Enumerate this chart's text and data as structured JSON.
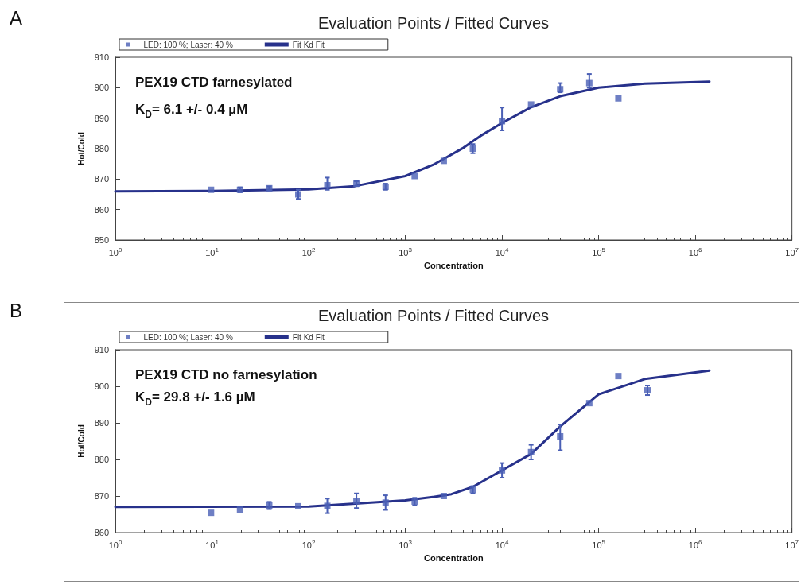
{
  "chart_data": [
    {
      "type": "scatter",
      "title": "Evaluation Points / Fitted Curves",
      "xlabel": "Concentration",
      "ylabel": "Hot/Cold",
      "annotations": [
        "A",
        "PEX19 CTD farnesylated",
        "K$_{D}$= 6.1 +/- 0.4 µM"
      ],
      "log": "x",
      "legend": "top left",
      "xlim": [
        1,
        10000000
      ],
      "xticks": [
        {
          "value": 1,
          "label": "10$^{0}$"
        },
        {
          "value": 10,
          "label": "10$^{1}$"
        },
        {
          "value": 100,
          "label": "10$^{2}$"
        },
        {
          "value": 1000,
          "label": "10$^{3}$"
        },
        {
          "value": 10000,
          "label": "10$^{4}$"
        },
        {
          "value": 100000,
          "label": "10$^{5}$"
        },
        {
          "value": 1000000,
          "label": "10$^{6}$"
        },
        {
          "value": 10000000,
          "label": "10$^{7}$"
        }
      ],
      "ylim": [
        850,
        910
      ],
      "yticks": [
        850,
        860,
        870,
        880,
        890,
        900,
        910
      ],
      "series": [
        {
          "name": "LED: 100 %; Laser: 40 %",
          "marker": "square",
          "color": "#4a5fb5",
          "x": [
            9.77,
            19.5,
            39.1,
            78.1,
            156,
            312,
            625,
            1250,
            2500,
            5000,
            10000,
            20000,
            40000,
            80000,
            160000
          ],
          "values": [
            866.5,
            866.5,
            867,
            865,
            868,
            868.5,
            867.5,
            871,
            876,
            880,
            889,
            894.5,
            899.5,
            901.5,
            896.5
          ],
          "errors": [
            null,
            0.8,
            0.6,
            [
              863.5,
              866.5
            ],
            [
              866.5,
              870.5
            ],
            0.8,
            1,
            null,
            null,
            [
              878.5,
              881.5
            ],
            [
              886,
              893.5
            ],
            null,
            [
              898.5,
              901.5
            ],
            [
              900,
              904.5
            ],
            null
          ]
        },
        {
          "name": "Fit Kd Fit",
          "type": "line",
          "marker": "none",
          "color": "#27318b",
          "x": [
            1,
            10,
            100,
            300,
            1000,
            2000,
            4000,
            6000,
            10000,
            20000,
            40000,
            100000,
            300000,
            1400000
          ],
          "values": [
            866,
            866.1,
            866.6,
            867.7,
            871,
            874.9,
            880.3,
            884.2,
            888.4,
            893.6,
            897.2,
            900,
            901.3,
            902
          ]
        }
      ]
    },
    {
      "type": "scatter",
      "title": "Evaluation Points / Fitted Curves",
      "xlabel": "Concentration",
      "ylabel": "Hot/Cold",
      "annotations": [
        "B",
        "PEX19 CTD no farnesylation",
        "K$_{D}$= 29.8 +/- 1.6 µM"
      ],
      "log": "x",
      "legend": "top left",
      "xlim": [
        1,
        10000000
      ],
      "xticks": [
        {
          "value": 1,
          "label": "10$^{0}$"
        },
        {
          "value": 10,
          "label": "10$^{1}$"
        },
        {
          "value": 100,
          "label": "10$^{2}$"
        },
        {
          "value": 1000,
          "label": "10$^{3}$"
        },
        {
          "value": 10000,
          "label": "10$^{4}$"
        },
        {
          "value": 100000,
          "label": "10$^{5}$"
        },
        {
          "value": 1000000,
          "label": "10$^{6}$"
        },
        {
          "value": 10000000,
          "label": "10$^{7}$"
        }
      ],
      "ylim": [
        860,
        910
      ],
      "yticks": [
        860,
        870,
        880,
        890,
        900,
        910
      ],
      "series": [
        {
          "name": "LED: 100 %; Laser: 40 %",
          "marker": "square",
          "color": "#4a5fb5",
          "x": [
            9.77,
            19.5,
            39.1,
            78.1,
            156,
            312,
            625,
            1250,
            2500,
            5000,
            10000,
            20000,
            40000,
            80000,
            160000,
            320000
          ],
          "values": [
            865.4,
            866.3,
            867.4,
            867.2,
            867.3,
            868.7,
            868.2,
            868.5,
            870,
            871.7,
            877,
            882,
            886.3,
            895.4,
            902.8,
            898.9
          ],
          "errors": [
            null,
            null,
            1,
            null,
            2,
            2,
            2,
            1,
            null,
            1,
            2,
            2,
            [
              882.5,
              889.5
            ],
            null,
            null,
            1.3
          ]
        },
        {
          "name": "Fit Kd Fit",
          "type": "line",
          "marker": "none",
          "color": "#27318b",
          "x": [
            1,
            100,
            1000,
            2000,
            3000,
            5000,
            10000,
            20000,
            40000,
            100000,
            300000,
            1400000
          ],
          "values": [
            867,
            867.1,
            868.8,
            869.8,
            870.5,
            872.5,
            877,
            881.5,
            889,
            897.8,
            902,
            904.3
          ]
        }
      ]
    }
  ]
}
